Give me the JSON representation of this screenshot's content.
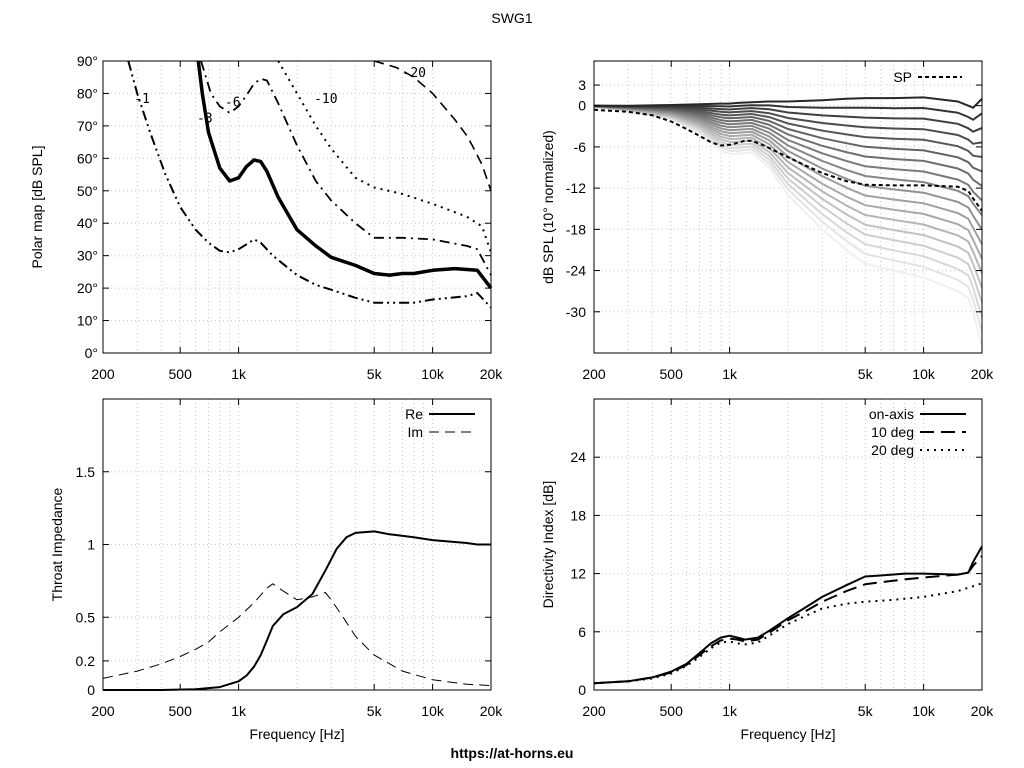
{
  "title": "SWG1",
  "footer": "https://at-horns.eu",
  "chart_data": [
    {
      "id": "polar",
      "type": "contour",
      "ylabel": "Polar map [dB SPL]",
      "xscale": "log",
      "xlim": [
        200,
        20000
      ],
      "ylim": [
        0,
        90
      ],
      "xticks": [
        {
          "v": 200,
          "l": "200"
        },
        {
          "v": 500,
          "l": "500"
        },
        {
          "v": 1000,
          "l": "1k"
        },
        {
          "v": 5000,
          "l": "5k"
        },
        {
          "v": 10000,
          "l": "10k"
        },
        {
          "v": 20000,
          "l": "20k"
        }
      ],
      "yticks": [
        {
          "v": 0,
          "l": "0°"
        },
        {
          "v": 10,
          "l": "10°"
        },
        {
          "v": 20,
          "l": "20°"
        },
        {
          "v": 30,
          "l": "30°"
        },
        {
          "v": 40,
          "l": "40°"
        },
        {
          "v": 50,
          "l": "50°"
        },
        {
          "v": 60,
          "l": "60°"
        },
        {
          "v": 70,
          "l": "70°"
        },
        {
          "v": 80,
          "l": "80°"
        },
        {
          "v": 90,
          "l": "90°"
        }
      ],
      "grid": true,
      "series": [
        {
          "name": "-1",
          "style": "dashdotdot",
          "width": 2,
          "label_at": [
            290,
            77
          ],
          "points": [
            [
              270,
              90
            ],
            [
              300,
              80
            ],
            [
              350,
              68
            ],
            [
              420,
              55
            ],
            [
              500,
              45
            ],
            [
              600,
              38
            ],
            [
              700,
              34
            ],
            [
              800,
              31.5
            ],
            [
              900,
              31
            ],
            [
              1000,
              32
            ],
            [
              1100,
              33.5
            ],
            [
              1200,
              35
            ],
            [
              1300,
              34
            ],
            [
              1500,
              30
            ],
            [
              2000,
              24
            ],
            [
              2500,
              21
            ],
            [
              3000,
              19.5
            ],
            [
              4000,
              17
            ],
            [
              5000,
              15.5
            ],
            [
              6000,
              15.5
            ],
            [
              7000,
              15.5
            ],
            [
              8000,
              15.5
            ],
            [
              10000,
              16.5
            ],
            [
              15000,
              17.5
            ],
            [
              17000,
              18.5
            ],
            [
              20000,
              14
            ]
          ]
        },
        {
          "name": "-3",
          "style": "solid",
          "width": 3.5,
          "label_at": [
            610,
            71
          ],
          "points": [
            [
              620,
              90
            ],
            [
              650,
              80
            ],
            [
              700,
              68
            ],
            [
              800,
              57
            ],
            [
              900,
              53
            ],
            [
              1000,
              54
            ],
            [
              1100,
              57.5
            ],
            [
              1200,
              59.5
            ],
            [
              1300,
              59
            ],
            [
              1400,
              56
            ],
            [
              1600,
              48
            ],
            [
              2000,
              38
            ],
            [
              2500,
              33
            ],
            [
              3000,
              29.5
            ],
            [
              4000,
              27
            ],
            [
              5000,
              24.5
            ],
            [
              6000,
              24
            ],
            [
              7000,
              24.5
            ],
            [
              8000,
              24.5
            ],
            [
              10000,
              25.5
            ],
            [
              13000,
              26
            ],
            [
              17000,
              25.5
            ],
            [
              20000,
              20
            ]
          ]
        },
        {
          "name": "-6",
          "style": "dashdot",
          "width": 1.8,
          "label_at": [
            850,
            76
          ],
          "points": [
            [
              640,
              90
            ],
            [
              720,
              80
            ],
            [
              800,
              76
            ],
            [
              900,
              74
            ],
            [
              1000,
              76
            ],
            [
              1100,
              79.5
            ],
            [
              1200,
              83
            ],
            [
              1300,
              84.5
            ],
            [
              1400,
              84
            ],
            [
              1600,
              77
            ],
            [
              2000,
              64
            ],
            [
              2500,
              53
            ],
            [
              3000,
              47
            ],
            [
              4000,
              40
            ],
            [
              5000,
              35.5
            ],
            [
              7000,
              35.5
            ],
            [
              10000,
              35
            ],
            [
              15000,
              33
            ],
            [
              17000,
              32
            ],
            [
              20000,
              24
            ]
          ]
        },
        {
          "name": "-10",
          "style": "dotted",
          "width": 2,
          "label_at": [
            2450,
            77
          ],
          "points": [
            [
              1600,
              90
            ],
            [
              2000,
              80
            ],
            [
              2500,
              70
            ],
            [
              3000,
              63
            ],
            [
              4000,
              54
            ],
            [
              5000,
              51
            ],
            [
              7000,
              49
            ],
            [
              10000,
              46
            ],
            [
              15000,
              42
            ],
            [
              18000,
              39
            ],
            [
              20000,
              31
            ]
          ]
        },
        {
          "name": "-20",
          "style": "dash",
          "width": 1.6,
          "label_at": [
            7000,
            85
          ],
          "points": [
            [
              5000,
              90
            ],
            [
              6500,
              88
            ],
            [
              8000,
              85
            ],
            [
              10000,
              80
            ],
            [
              13000,
              72
            ],
            [
              15000,
              67
            ],
            [
              16000,
              64
            ],
            [
              18000,
              58
            ],
            [
              20000,
              50
            ]
          ]
        }
      ]
    },
    {
      "id": "spl",
      "type": "line",
      "ylabel": "dB SPL (10° normalized)",
      "xscale": "log",
      "xlim": [
        200,
        20000
      ],
      "ylim": [
        -36,
        6.5
      ],
      "xticks": [
        {
          "v": 200,
          "l": "200"
        },
        {
          "v": 500,
          "l": "500"
        },
        {
          "v": 1000,
          "l": "1k"
        },
        {
          "v": 5000,
          "l": "5k"
        },
        {
          "v": 10000,
          "l": "10k"
        },
        {
          "v": 20000,
          "l": "20k"
        }
      ],
      "yticks": [
        {
          "v": 3,
          "l": "3"
        },
        {
          "v": 0,
          "l": "0"
        },
        {
          "v": -6,
          "l": "-6"
        },
        {
          "v": -12,
          "l": "-12"
        },
        {
          "v": -18,
          "l": "-18"
        },
        {
          "v": -24,
          "l": "-24"
        },
        {
          "v": -30,
          "l": "-30"
        }
      ],
      "grid": true,
      "legend": "top-right",
      "sp_label": "SP",
      "family_x": [
        200,
        300,
        500,
        700,
        900,
        1000,
        1100,
        1300,
        1600,
        2000,
        3000,
        4000,
        5000,
        7000,
        10000,
        15000,
        17000,
        18000,
        20000
      ],
      "family_top": [
        0,
        0,
        0.1,
        0.2,
        0.3,
        0.3,
        0.4,
        0.5,
        0.6,
        0.6,
        0.8,
        1.0,
        1.1,
        1.1,
        1.2,
        0.6,
        0,
        -0.3,
        1
      ],
      "family_bottom": [
        -0.2,
        -0.8,
        -2,
        -4,
        -6.5,
        -7,
        -7,
        -6.8,
        -9,
        -13,
        -18,
        -21,
        -23,
        -24,
        -25,
        -27,
        -28,
        -30,
        -35
      ],
      "family_count": 18,
      "sp": {
        "name": "SP",
        "x": [
          200,
          300,
          400,
          500,
          600,
          700,
          800,
          900,
          1000,
          1100,
          1200,
          1300,
          1500,
          2000,
          2500,
          3000,
          4000,
          5000,
          7000,
          10000,
          15000,
          17000,
          18000,
          20000
        ],
        "y": [
          -0.6,
          -0.9,
          -1.4,
          -2.3,
          -3.4,
          -4.4,
          -5.3,
          -5.8,
          -5.7,
          -5.4,
          -5.1,
          -5.1,
          -5.8,
          -7.5,
          -8.8,
          -9.8,
          -11,
          -11.5,
          -11.6,
          -11.6,
          -11.8,
          -12.4,
          -13.5,
          -15.3
        ]
      }
    },
    {
      "id": "impedance",
      "type": "line",
      "ylabel": "Throat Impedance",
      "xlabel": "Frequency [Hz]",
      "xscale": "log",
      "xlim": [
        200,
        20000
      ],
      "ylim": [
        0,
        2
      ],
      "xticks": [
        {
          "v": 200,
          "l": "200"
        },
        {
          "v": 500,
          "l": "500"
        },
        {
          "v": 1000,
          "l": "1k"
        },
        {
          "v": 5000,
          "l": "5k"
        },
        {
          "v": 10000,
          "l": "10k"
        },
        {
          "v": 20000,
          "l": "20k"
        }
      ],
      "yticks": [
        {
          "v": 0,
          "l": "0"
        },
        {
          "v": 0.2,
          "l": "0.2"
        },
        {
          "v": 0.5,
          "l": "0.5"
        },
        {
          "v": 1,
          "l": "1"
        },
        {
          "v": 1.5,
          "l": "1.5"
        }
      ],
      "grid": true,
      "legend": "top-right",
      "series": [
        {
          "name": "Re",
          "style": "solid",
          "width": 2,
          "x": [
            200,
            400,
            600,
            800,
            1000,
            1100,
            1200,
            1300,
            1400,
            1500,
            1700,
            2000,
            2400,
            2800,
            3200,
            3600,
            4000,
            5000,
            6000,
            8000,
            10000,
            15000,
            17000,
            20000
          ],
          "y": [
            0,
            0,
            0.005,
            0.02,
            0.06,
            0.1,
            0.16,
            0.24,
            0.34,
            0.44,
            0.52,
            0.57,
            0.66,
            0.82,
            0.97,
            1.05,
            1.08,
            1.09,
            1.07,
            1.05,
            1.03,
            1.01,
            1.0,
            1.0
          ]
        },
        {
          "name": "Im",
          "style": "dash",
          "width": 1,
          "x": [
            200,
            300,
            400,
            500,
            600,
            700,
            800,
            1000,
            1200,
            1400,
            1500,
            1700,
            2000,
            2400,
            2800,
            3000,
            3500,
            4000,
            5000,
            7000,
            10000,
            15000,
            20000
          ],
          "y": [
            0.08,
            0.13,
            0.18,
            0.23,
            0.28,
            0.33,
            0.4,
            0.5,
            0.6,
            0.7,
            0.73,
            0.68,
            0.62,
            0.64,
            0.67,
            0.62,
            0.49,
            0.37,
            0.24,
            0.13,
            0.07,
            0.04,
            0.03
          ]
        }
      ]
    },
    {
      "id": "di",
      "type": "line",
      "ylabel": "Directivity Index [dB]",
      "xlabel": "Frequency [Hz]",
      "xscale": "log",
      "xlim": [
        200,
        20000
      ],
      "ylim": [
        0,
        30
      ],
      "xticks": [
        {
          "v": 200,
          "l": "200"
        },
        {
          "v": 500,
          "l": "500"
        },
        {
          "v": 1000,
          "l": "1k"
        },
        {
          "v": 5000,
          "l": "5k"
        },
        {
          "v": 10000,
          "l": "10k"
        },
        {
          "v": 20000,
          "l": "20k"
        }
      ],
      "yticks": [
        {
          "v": 0,
          "l": "0"
        },
        {
          "v": 6,
          "l": "6"
        },
        {
          "v": 12,
          "l": "12"
        },
        {
          "v": 18,
          "l": "18"
        },
        {
          "v": 24,
          "l": "24"
        }
      ],
      "grid": true,
      "legend": "top-right",
      "series": [
        {
          "name": "on-axis",
          "style": "solid",
          "width": 2,
          "x": [
            200,
            300,
            400,
            500,
            600,
            700,
            800,
            900,
            1000,
            1100,
            1200,
            1400,
            1600,
            2000,
            2500,
            3000,
            4000,
            5000,
            6000,
            8000,
            10000,
            15000,
            17000,
            18000,
            20000
          ],
          "y": [
            0.7,
            0.9,
            1.3,
            1.9,
            2.7,
            3.8,
            4.8,
            5.4,
            5.6,
            5.4,
            5.2,
            5.4,
            6.1,
            7.4,
            8.6,
            9.6,
            10.8,
            11.7,
            11.8,
            12,
            12,
            11.9,
            12.1,
            13.2,
            14.8
          ]
        },
        {
          "name": "10 deg",
          "style": "longdash",
          "width": 2,
          "x": [
            200,
            300,
            400,
            500,
            600,
            700,
            800,
            900,
            1000,
            1100,
            1200,
            1400,
            1600,
            2000,
            2500,
            3000,
            4000,
            5000,
            6000,
            8000,
            10000,
            15000,
            17000,
            18000,
            20000
          ],
          "y": [
            0.7,
            0.9,
            1.3,
            1.8,
            2.6,
            3.6,
            4.5,
            5.1,
            5.3,
            5.2,
            5.0,
            5.2,
            5.9,
            7.2,
            8.2,
            9.1,
            10.2,
            10.9,
            11.1,
            11.4,
            11.6,
            11.9,
            12.1,
            12.8,
            13.8
          ]
        },
        {
          "name": "20 deg",
          "style": "dotted",
          "width": 2,
          "x": [
            200,
            300,
            400,
            500,
            600,
            700,
            800,
            900,
            1000,
            1100,
            1200,
            1400,
            1600,
            2000,
            2500,
            3000,
            4000,
            5000,
            6000,
            8000,
            10000,
            15000,
            20000
          ],
          "y": [
            0.7,
            0.9,
            1.2,
            1.7,
            2.5,
            3.4,
            4.3,
            4.9,
            5.0,
            4.8,
            4.7,
            4.9,
            5.6,
            6.8,
            7.7,
            8.4,
            8.9,
            9.1,
            9.2,
            9.4,
            9.6,
            10.2,
            11
          ]
        }
      ]
    }
  ]
}
